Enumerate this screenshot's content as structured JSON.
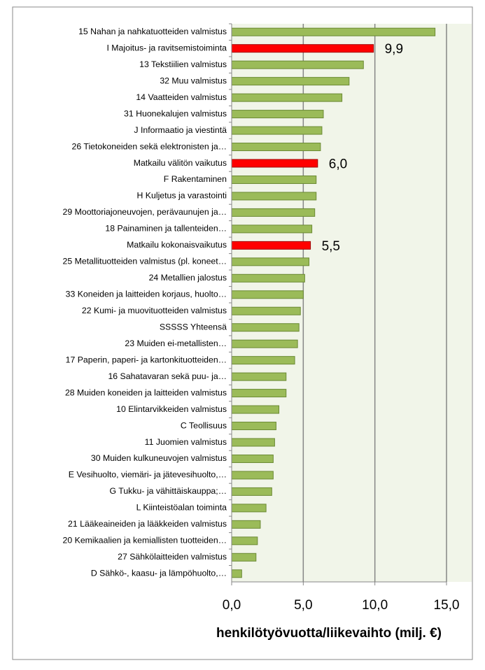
{
  "chart_data": {
    "type": "bar",
    "orientation": "horizontal",
    "categories": [
      "15 Nahan ja nahkatuotteiden valmistus",
      "I Majoitus- ja ravitsemistoiminta",
      "13 Tekstiilien valmistus",
      "32 Muu valmistus",
      "14 Vaatteiden valmistus",
      "31 Huonekalujen valmistus",
      "J Informaatio ja viestintä",
      "26 Tietokoneiden sekä elektronisten ja…",
      "Matkailu välitön vaikutus",
      "F Rakentaminen",
      "H Kuljetus ja varastointi",
      "29 Moottoriajoneuvojen, perävaunujen ja…",
      "18 Painaminen ja tallenteiden…",
      "Matkailu kokonaisvaikutus",
      "25 Metallituotteiden valmistus (pl. koneet…",
      "24 Metallien jalostus",
      "33 Koneiden ja laitteiden korjaus, huolto…",
      "22 Kumi- ja muovituotteiden valmistus",
      "SSSSS Yhteensä",
      "23 Muiden ei-metallisten…",
      "17 Paperin, paperi- ja kartonkituotteiden…",
      "16 Sahatavaran sekä puu- ja…",
      "28 Muiden koneiden ja laitteiden valmistus",
      "10 Elintarvikkeiden valmistus",
      "C Teollisuus",
      "11 Juomien valmistus",
      "30 Muiden kulkuneuvojen valmistus",
      "E Vesihuolto, viemäri- ja jätevesihuolto,…",
      "G Tukku- ja vähittäiskauppa;…",
      "L Kiinteistöalan toiminta",
      "21 Lääkeaineiden ja lääkkeiden valmistus",
      "20 Kemikaalien ja kemiallisten tuotteiden…",
      "27 Sähkölaitteiden valmistus",
      "D Sähkö-, kaasu- ja lämpöhuolto,…"
    ],
    "values": [
      14.2,
      9.9,
      9.2,
      8.2,
      7.7,
      6.4,
      6.3,
      6.2,
      6.0,
      5.9,
      5.9,
      5.8,
      5.6,
      5.5,
      5.4,
      5.1,
      5.0,
      4.8,
      4.7,
      4.6,
      4.4,
      3.8,
      3.8,
      3.3,
      3.1,
      3.0,
      2.9,
      2.9,
      2.8,
      2.4,
      2.0,
      1.8,
      1.7,
      0.7
    ],
    "value_labels": [
      null,
      "9,9",
      null,
      null,
      null,
      null,
      null,
      null,
      "6,0",
      null,
      null,
      null,
      null,
      "5,5",
      null,
      null,
      null,
      null,
      null,
      null,
      null,
      null,
      null,
      null,
      null,
      null,
      null,
      null,
      null,
      null,
      null,
      null,
      null,
      null
    ],
    "colors": [
      "#9bbb59",
      "#ff0000",
      "#9bbb59",
      "#9bbb59",
      "#9bbb59",
      "#9bbb59",
      "#9bbb59",
      "#9bbb59",
      "#ff0000",
      "#9bbb59",
      "#9bbb59",
      "#9bbb59",
      "#9bbb59",
      "#ff0000",
      "#9bbb59",
      "#9bbb59",
      "#9bbb59",
      "#9bbb59",
      "#9bbb59",
      "#9bbb59",
      "#9bbb59",
      "#9bbb59",
      "#9bbb59",
      "#9bbb59",
      "#9bbb59",
      "#9bbb59",
      "#9bbb59",
      "#9bbb59",
      "#9bbb59",
      "#9bbb59",
      "#9bbb59",
      "#9bbb59",
      "#9bbb59",
      "#9bbb59"
    ],
    "xlabel": "henkilötyövuotta/liikevaihto (milj. €)",
    "xlim": [
      0,
      15
    ],
    "xticks": [
      {
        "value": 0,
        "label": "0,0"
      },
      {
        "value": 5,
        "label": "5,0"
      },
      {
        "value": 10,
        "label": "10,0"
      },
      {
        "value": 15,
        "label": "15,0"
      }
    ],
    "grid": true
  }
}
